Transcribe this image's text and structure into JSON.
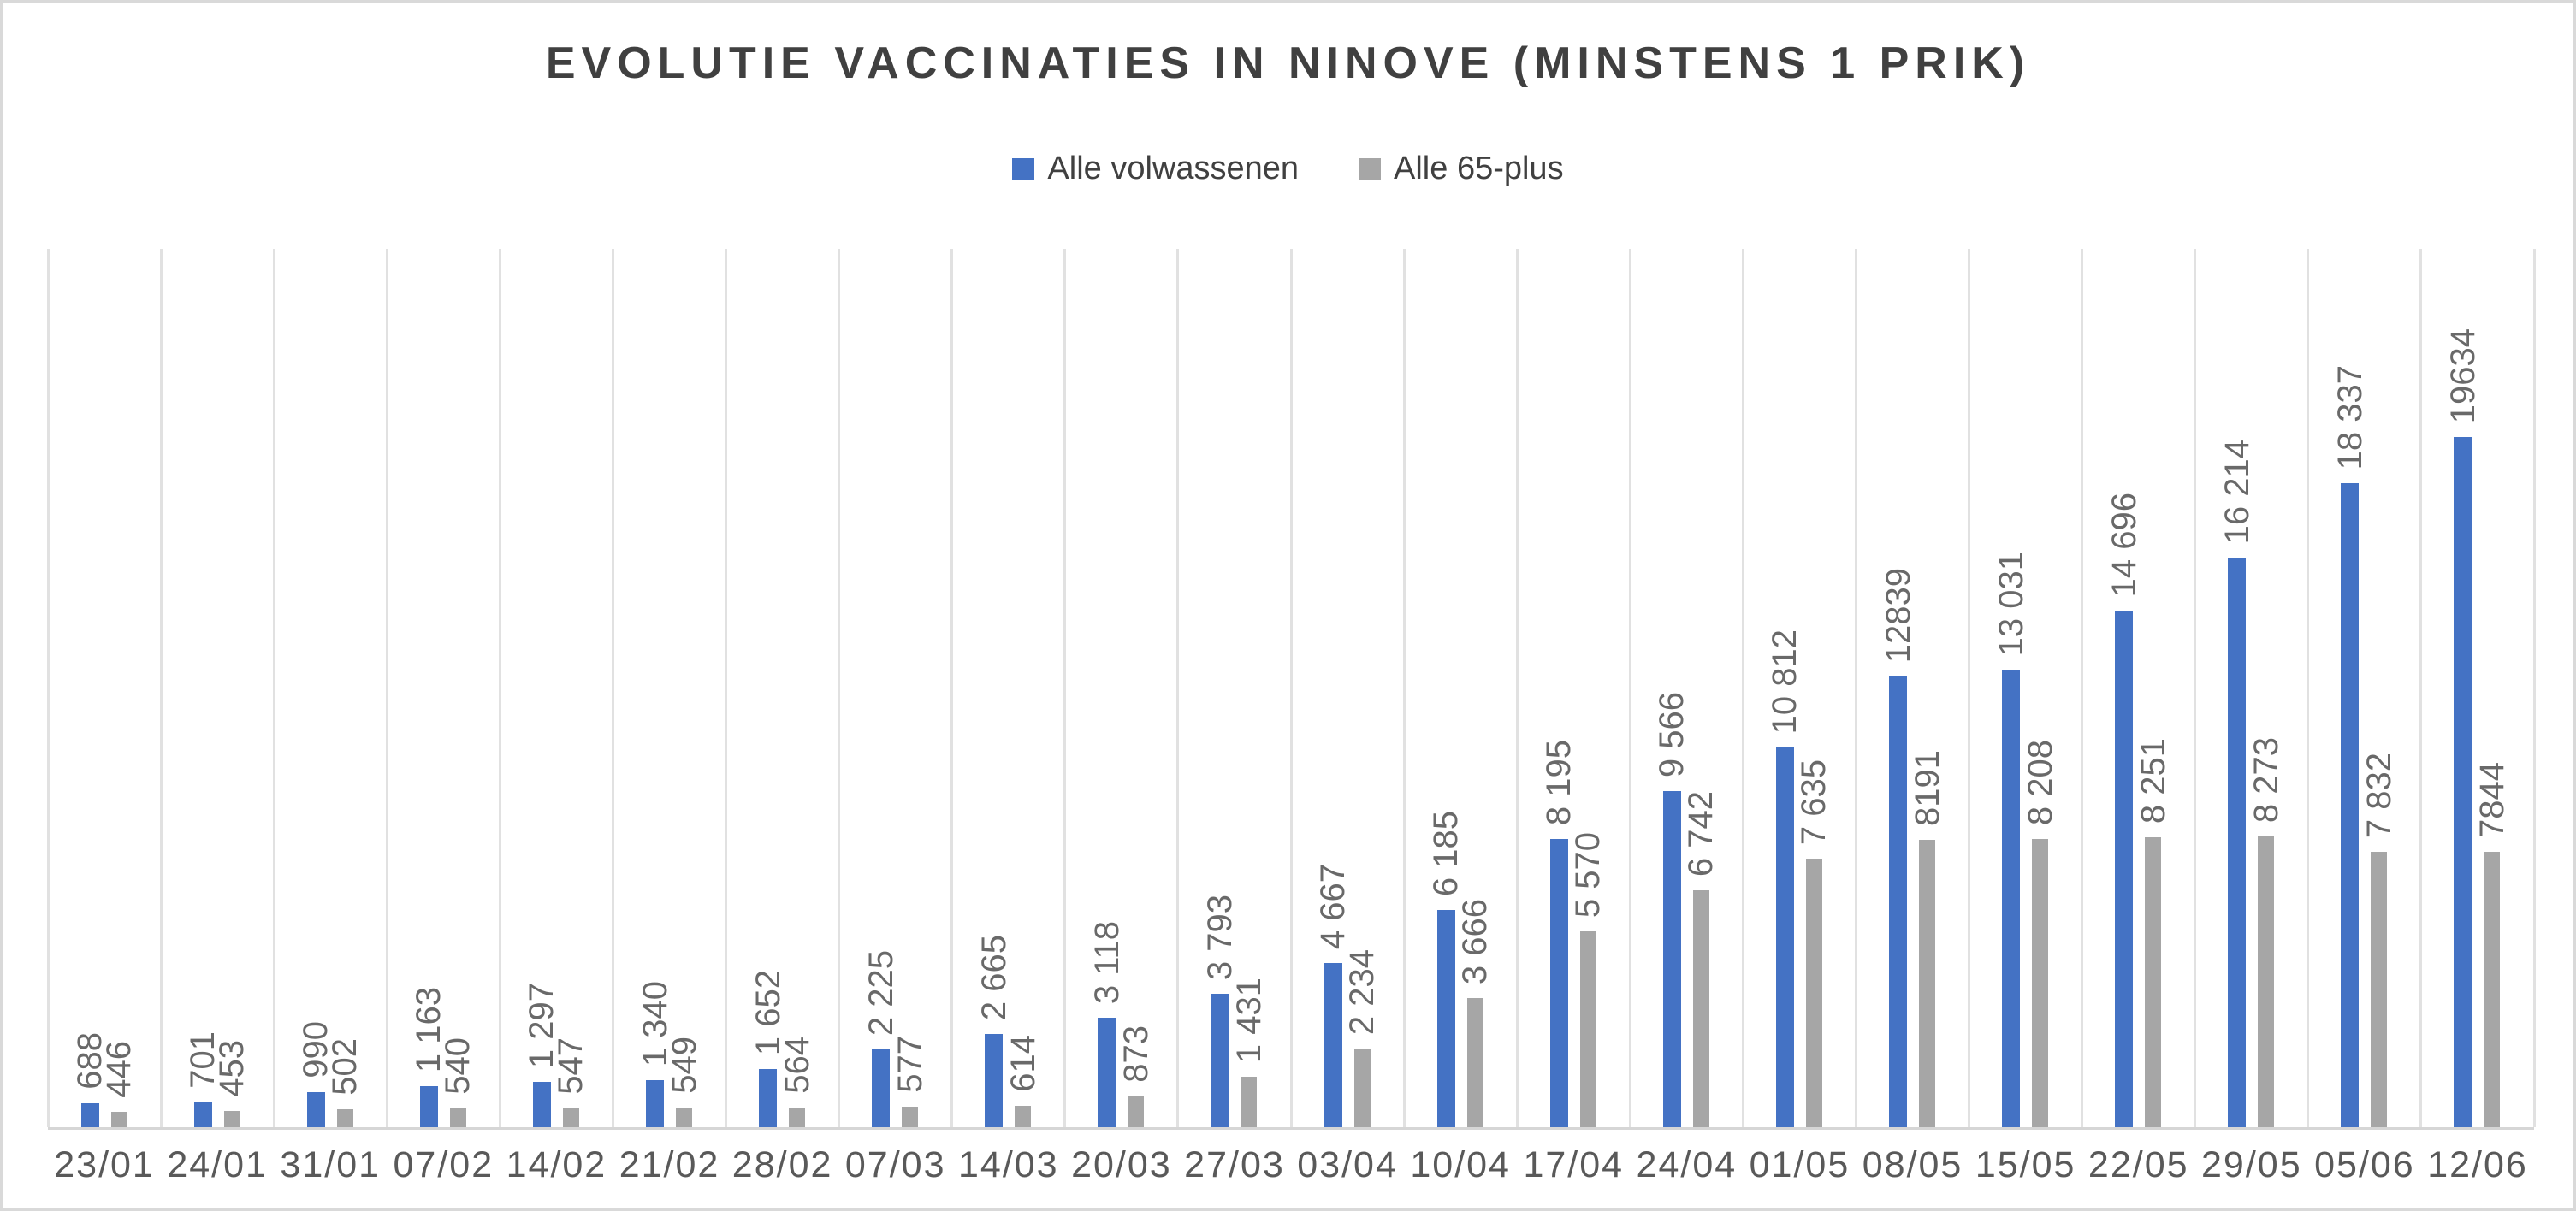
{
  "chart_data": {
    "type": "bar",
    "title": "EVOLUTIE VACCINATIES IN NINOVE (MINSTENS 1 PRIK)",
    "legend_position": "top",
    "grid": "vertical-category-separators-only",
    "ylim": [
      0,
      25000
    ],
    "y_axis_visible": false,
    "categories": [
      "23/01",
      "24/01",
      "31/01",
      "07/02",
      "14/02",
      "21/02",
      "28/02",
      "07/03",
      "14/03",
      "20/03",
      "27/03",
      "03/04",
      "10/04",
      "17/04",
      "24/04",
      "01/05",
      "08/05",
      "15/05",
      "22/05",
      "29/05",
      "05/06",
      "12/06"
    ],
    "series": [
      {
        "name": "Alle volwassenen",
        "color": "#4472C4",
        "values": [
          688,
          701,
          990,
          1163,
          1297,
          1340,
          1652,
          2225,
          2665,
          3118,
          3793,
          4667,
          6185,
          8195,
          9566,
          10812,
          12839,
          13031,
          14696,
          16214,
          18337,
          19634
        ],
        "labels": [
          "688",
          "701",
          "990",
          "1 163",
          "1 297",
          "1 340",
          "1 652",
          "2 225",
          "2 665",
          "3 118",
          "3 793",
          "4 667",
          "6 185",
          "8 195",
          "9 566",
          "10 812",
          "12839",
          "13 031",
          "14 696",
          "16 214",
          "18 337",
          "19634"
        ]
      },
      {
        "name": "Alle 65-plus",
        "color": "#A6A6A6",
        "values": [
          446,
          453,
          502,
          540,
          547,
          549,
          564,
          577,
          614,
          873,
          1431,
          2234,
          3666,
          5570,
          6742,
          7635,
          8191,
          8208,
          8251,
          8273,
          7832,
          7844
        ],
        "labels": [
          "446",
          "453",
          "502",
          "540",
          "547",
          "549",
          "564",
          "577",
          "614",
          "873",
          "1 431",
          "2 234",
          "3 666",
          "5 570",
          "6 742",
          "7 635",
          "8191",
          "8 208",
          "8 251",
          "8 273",
          "7 832",
          "7844"
        ]
      }
    ],
    "colors": {
      "bar_blue": "#4472C4",
      "bar_gray": "#A6A6A6",
      "gridline": "#E1E1E1",
      "label_text": "#696969",
      "axis_text": "#595959",
      "title_text": "#404040"
    }
  }
}
